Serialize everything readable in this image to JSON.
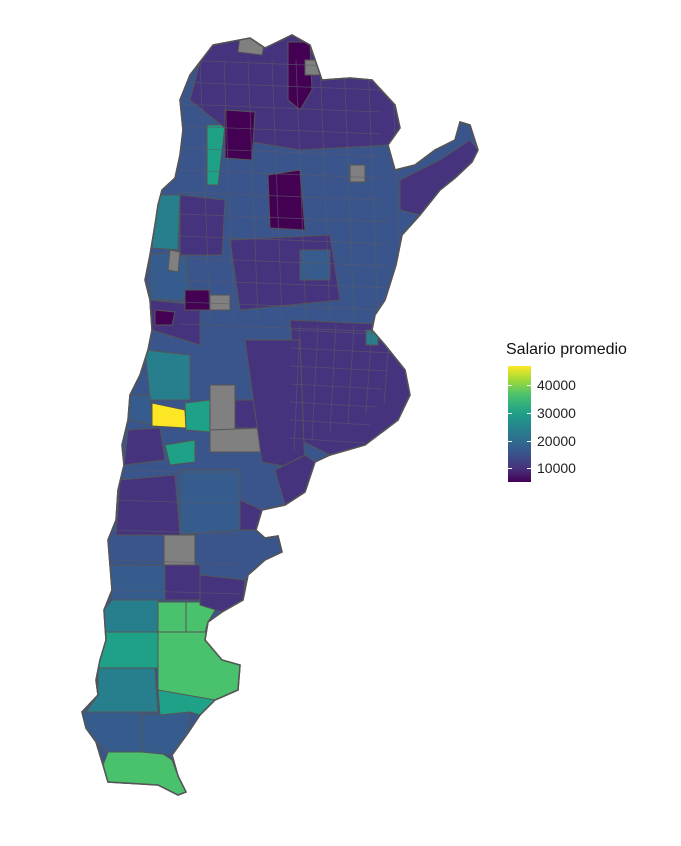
{
  "legend": {
    "title": "Salario promedio",
    "min": 5000,
    "max": 47000,
    "ticks": [
      {
        "value": 40000,
        "label": "40000"
      },
      {
        "value": 30000,
        "label": "30000"
      },
      {
        "value": 20000,
        "label": "20000"
      },
      {
        "value": 10000,
        "label": "10000"
      }
    ]
  },
  "colors": {
    "background": "#ffffff",
    "border": "#555555",
    "missing": "#808080",
    "scale": [
      "#440154",
      "#46337e",
      "#365c8d",
      "#277f8e",
      "#1fa187",
      "#4ac16d",
      "#a0da39",
      "#fde725"
    ]
  }
}
